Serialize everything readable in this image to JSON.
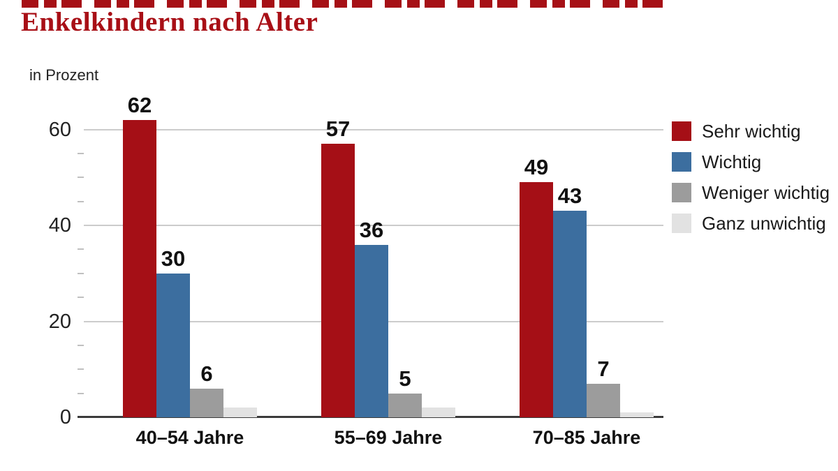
{
  "header": {
    "title": "Enkelkindern nach Alter"
  },
  "axis": {
    "unit_label": "in Prozent"
  },
  "chart_data": {
    "type": "bar",
    "title": "Enkelkindern nach Alter",
    "ylabel": "in Prozent",
    "xlabel": "",
    "ylim": [
      0,
      65
    ],
    "grid": "horizontal",
    "legend_position": "right",
    "y_ticks": [
      0,
      20,
      40,
      60
    ],
    "categories": [
      "40–54 Jahre",
      "55–69 Jahre",
      "70–85 Jahre"
    ],
    "series": [
      {
        "name": "Sehr wichtig",
        "color": "#a50f16",
        "values": [
          62,
          57,
          49
        ],
        "labeled": true
      },
      {
        "name": "Wichtig",
        "color": "#3c6e9f",
        "values": [
          30,
          36,
          43
        ],
        "labeled": true
      },
      {
        "name": "Weniger wichtig",
        "color": "#9c9c9c",
        "values": [
          6,
          5,
          7
        ],
        "labeled": true
      },
      {
        "name": "Ganz unwichtig",
        "color": "#e2e2e2",
        "values": [
          2,
          2,
          1
        ],
        "labeled": false
      }
    ]
  }
}
